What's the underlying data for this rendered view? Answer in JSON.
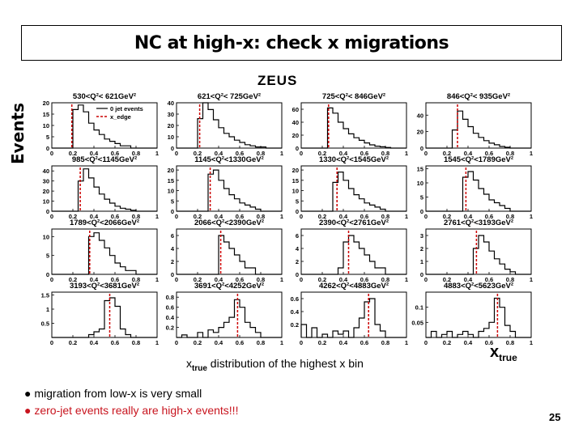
{
  "slide": {
    "title": "NC at high-x: check x migrations",
    "experiment_label": "ZEUS",
    "y_axis_label": "Events",
    "x_axis_label_main": "x",
    "x_axis_label_sub": "true",
    "caption_prefix": "x",
    "caption_sub": "true",
    "caption_rest": " distribution of the highest x bin",
    "bullets": [
      "● migration from low-x is very small",
      "● zero-jet events really are high-x events!!!"
    ],
    "page_number": "25",
    "colors": {
      "edge_line": "#cc0000",
      "bullet_2": "#c8141e"
    }
  },
  "chart_data": {
    "type": "histogram-grid",
    "legend": {
      "entries": [
        "0 jet events",
        "x_edge"
      ],
      "placement": "inside first panel, top-right"
    },
    "x_ticks": [
      "0",
      "0.2",
      "0.4",
      "0.6",
      "0.8",
      "1"
    ],
    "xlim": [
      0,
      1
    ],
    "panels": [
      {
        "label": "530<Q²< 621GeV²",
        "yticks": [
          "0",
          "5",
          "10",
          "15",
          "20"
        ],
        "ylim": [
          0,
          20
        ],
        "edge": 0.19,
        "values": [
          0,
          0,
          0,
          0,
          17,
          19,
          16,
          11,
          8,
          6,
          4,
          3,
          2,
          1,
          1,
          0,
          0,
          0,
          0,
          0
        ]
      },
      {
        "label": "621<Q²< 725GeV²",
        "yticks": [
          "0",
          "10",
          "20",
          "30",
          "40"
        ],
        "ylim": [
          0,
          40
        ],
        "edge": 0.22,
        "values": [
          0,
          0,
          0,
          0,
          26,
          40,
          34,
          25,
          18,
          13,
          10,
          7,
          5,
          3,
          2,
          1,
          1,
          0,
          0,
          0
        ]
      },
      {
        "label": "725<Q²< 846GeV²",
        "yticks": [
          "0",
          "20",
          "40",
          "60"
        ],
        "ylim": [
          0,
          70
        ],
        "edge": 0.26,
        "values": [
          0,
          0,
          0,
          0,
          0,
          62,
          54,
          40,
          30,
          22,
          16,
          12,
          8,
          5,
          3,
          2,
          1,
          0,
          0,
          0
        ]
      },
      {
        "label": "846<Q²< 935GeV²",
        "yticks": [
          "0",
          "20",
          "40"
        ],
        "ylim": [
          0,
          55
        ],
        "edge": 0.3,
        "values": [
          0,
          0,
          0,
          0,
          0,
          22,
          45,
          35,
          26,
          18,
          13,
          9,
          6,
          4,
          2,
          1,
          0,
          0,
          0,
          0
        ]
      },
      {
        "label": "985<Q²<1145GeV²",
        "yticks": [
          "0",
          "10",
          "20",
          "30",
          "40"
        ],
        "ylim": [
          0,
          45
        ],
        "edge": 0.27,
        "values": [
          0,
          0,
          0,
          0,
          0,
          30,
          42,
          33,
          24,
          17,
          12,
          8,
          5,
          3,
          2,
          1,
          0,
          0,
          0,
          0
        ]
      },
      {
        "label": "1145<Q²<1330GeV²",
        "yticks": [
          "0",
          "5",
          "10",
          "15",
          "20"
        ],
        "ylim": [
          0,
          22
        ],
        "edge": 0.32,
        "values": [
          0,
          0,
          0,
          0,
          0,
          0,
          18,
          20,
          15,
          11,
          8,
          6,
          4,
          3,
          2,
          1,
          0,
          0,
          0,
          0
        ]
      },
      {
        "label": "1330<Q²<1545GeV²",
        "yticks": [
          "0",
          "5",
          "10",
          "15",
          "20"
        ],
        "ylim": [
          0,
          22
        ],
        "edge": 0.34,
        "values": [
          0,
          0,
          0,
          0,
          0,
          0,
          14,
          19,
          15,
          11,
          8,
          6,
          4,
          3,
          2,
          1,
          0,
          0,
          0,
          0
        ]
      },
      {
        "label": "1545<Q²<1789GeV²",
        "yticks": [
          "0",
          "5",
          "10",
          "15"
        ],
        "ylim": [
          0,
          16
        ],
        "edge": 0.38,
        "values": [
          0,
          0,
          0,
          0,
          0,
          0,
          0,
          12,
          14,
          11,
          8,
          6,
          4,
          3,
          2,
          1,
          0,
          0,
          0,
          0
        ]
      },
      {
        "label": "1789<Q²<2066GeV²",
        "yticks": [
          "0",
          "5",
          "10"
        ],
        "ylim": [
          0,
          12
        ],
        "edge": 0.36,
        "values": [
          0,
          0,
          0,
          0,
          0,
          0,
          0,
          10,
          11,
          9,
          7,
          5,
          3,
          2,
          1,
          1,
          0,
          0,
          0,
          0
        ]
      },
      {
        "label": "2066<Q²<2390GeV²",
        "yticks": [
          "0",
          "2",
          "4",
          "6"
        ],
        "ylim": [
          0,
          7
        ],
        "edge": 0.42,
        "values": [
          0,
          0,
          0,
          0,
          0,
          0,
          0,
          0,
          6,
          5,
          4,
          3,
          2,
          1,
          1,
          0,
          0,
          0,
          0,
          0
        ]
      },
      {
        "label": "2390<Q²<2761GeV²",
        "yticks": [
          "0",
          "2",
          "4",
          "6"
        ],
        "ylim": [
          0,
          7
        ],
        "edge": 0.45,
        "values": [
          0,
          0,
          0,
          0,
          0,
          0,
          0,
          1,
          5,
          6,
          5,
          4,
          3,
          2,
          1,
          1,
          0,
          0,
          0,
          0
        ]
      },
      {
        "label": "2761<Q²<3193GeV²",
        "yticks": [
          "0",
          "1",
          "2",
          "3"
        ],
        "ylim": [
          0,
          3.5
        ],
        "edge": 0.48,
        "values": [
          0,
          0,
          0,
          0,
          0,
          0,
          0,
          0,
          0,
          2,
          3,
          2.5,
          1.8,
          1.2,
          0.8,
          0.4,
          0.2,
          0,
          0,
          0
        ]
      },
      {
        "label": "3193<Q²<3681GeV²",
        "yticks": [
          "0.5",
          "1",
          "1.5"
        ],
        "ylim": [
          0,
          1.6
        ],
        "edge": 0.55,
        "values": [
          0,
          0,
          0,
          0,
          0,
          0,
          0,
          0.1,
          0.2,
          0.3,
          1.3,
          1.4,
          1.1,
          0.3,
          0.1,
          0,
          0,
          0,
          0,
          0
        ]
      },
      {
        "label": "3691<Q²<4252GeV²",
        "yticks": [
          "0.2",
          "0.4",
          "0.6",
          "0.8"
        ],
        "ylim": [
          0,
          0.9
        ],
        "edge": 0.58,
        "values": [
          0,
          0.05,
          0,
          0,
          0.1,
          0,
          0.15,
          0.1,
          0.2,
          0.3,
          0.4,
          0.75,
          0.6,
          0.3,
          0.2,
          0.1,
          0,
          0,
          0,
          0
        ]
      },
      {
        "label": "4262<Q²<4883GeV²",
        "yticks": [
          "0.2",
          "0.4",
          "0.6"
        ],
        "ylim": [
          0,
          0.7
        ],
        "edge": 0.64,
        "values": [
          0.2,
          0,
          0.15,
          0,
          0.05,
          0,
          0.1,
          0.05,
          0.1,
          0,
          0.15,
          0.3,
          0.55,
          0.6,
          0.2,
          0.1,
          0,
          0,
          0,
          0
        ]
      },
      {
        "label": "4883<Q²<5623GeV²",
        "yticks": [
          "0.05",
          "0.1"
        ],
        "ylim": [
          0,
          0.15
        ],
        "edge": 0.68,
        "values": [
          0,
          0.02,
          0,
          0.01,
          0.02,
          0,
          0.01,
          0.02,
          0.01,
          0,
          0.02,
          0.03,
          0.05,
          0.13,
          0.1,
          0.04,
          0.02,
          0,
          0,
          0
        ]
      }
    ]
  }
}
